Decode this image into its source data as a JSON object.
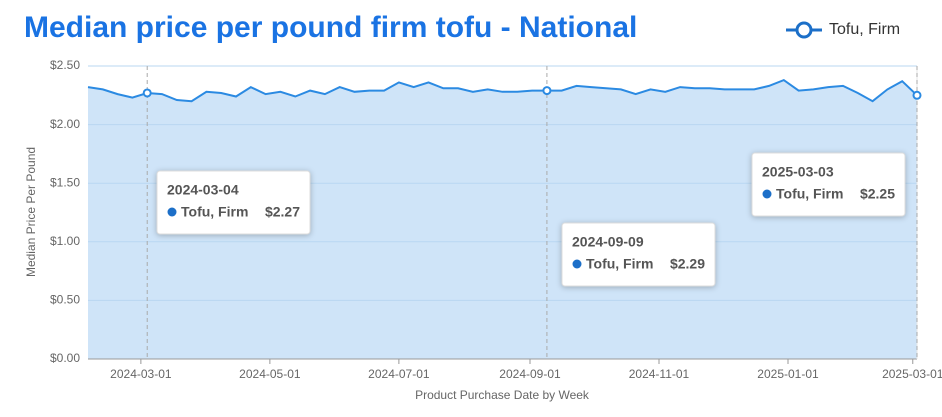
{
  "chart_data": {
    "type": "area",
    "title": "Median price per pound firm tofu - National",
    "x_label": "Product Purchase Date by Week",
    "y_label": "Median Price Per Pound",
    "x": [
      "2024-02-05",
      "2024-02-12",
      "2024-02-19",
      "2024-02-26",
      "2024-03-04",
      "2024-03-11",
      "2024-03-18",
      "2024-03-25",
      "2024-04-01",
      "2024-04-08",
      "2024-04-15",
      "2024-04-22",
      "2024-04-29",
      "2024-05-06",
      "2024-05-13",
      "2024-05-20",
      "2024-05-27",
      "2024-06-03",
      "2024-06-10",
      "2024-06-17",
      "2024-06-24",
      "2024-07-01",
      "2024-07-08",
      "2024-07-15",
      "2024-07-22",
      "2024-07-29",
      "2024-08-05",
      "2024-08-12",
      "2024-08-19",
      "2024-08-26",
      "2024-09-02",
      "2024-09-09",
      "2024-09-16",
      "2024-09-23",
      "2024-09-30",
      "2024-10-07",
      "2024-10-14",
      "2024-10-21",
      "2024-10-28",
      "2024-11-04",
      "2024-11-11",
      "2024-11-18",
      "2024-11-25",
      "2024-12-02",
      "2024-12-09",
      "2024-12-16",
      "2024-12-23",
      "2024-12-30",
      "2025-01-06",
      "2025-01-13",
      "2025-01-20",
      "2025-01-27",
      "2025-02-03",
      "2025-02-10",
      "2025-02-17",
      "2025-02-24",
      "2025-03-03"
    ],
    "series": [
      {
        "name": "Tofu, Firm",
        "color": "#2b8ae2",
        "fill": "#cfe4f8",
        "values": [
          2.32,
          2.3,
          2.26,
          2.23,
          2.27,
          2.26,
          2.21,
          2.2,
          2.28,
          2.27,
          2.24,
          2.32,
          2.26,
          2.28,
          2.24,
          2.29,
          2.26,
          2.32,
          2.28,
          2.29,
          2.29,
          2.36,
          2.32,
          2.36,
          2.31,
          2.31,
          2.28,
          2.3,
          2.28,
          2.28,
          2.29,
          2.29,
          2.29,
          2.33,
          2.32,
          2.31,
          2.3,
          2.26,
          2.3,
          2.28,
          2.32,
          2.31,
          2.31,
          2.3,
          2.3,
          2.3,
          2.33,
          2.38,
          2.29,
          2.3,
          2.32,
          2.33,
          2.27,
          2.2,
          2.3,
          2.37,
          2.25
        ]
      }
    ],
    "xlim": [
      "2024-02-05",
      "2025-03-03"
    ],
    "xticks": [
      "2024-03-01",
      "2024-05-01",
      "2024-07-01",
      "2024-09-01",
      "2024-11-01",
      "2025-01-01",
      "2025-03-01"
    ],
    "ylim": [
      0,
      2.5
    ],
    "yticks": [
      {
        "value": 0,
        "label": "$0.00"
      },
      {
        "value": 0.5,
        "label": "$0.50"
      },
      {
        "value": 1,
        "label": "$1.00"
      },
      {
        "value": 1.5,
        "label": "$1.50"
      },
      {
        "value": 2,
        "label": "$2.00"
      },
      {
        "value": 2.5,
        "label": "$2.50"
      }
    ],
    "grid": true,
    "legend": "top-right",
    "tooltips": [
      {
        "x": "2024-03-04",
        "value": 2.27,
        "value_label": "$2.27"
      },
      {
        "x": "2024-09-09",
        "value": 2.29,
        "value_label": "$2.29"
      },
      {
        "x": "2025-03-03",
        "value": 2.25,
        "value_label": "$2.25"
      }
    ]
  }
}
